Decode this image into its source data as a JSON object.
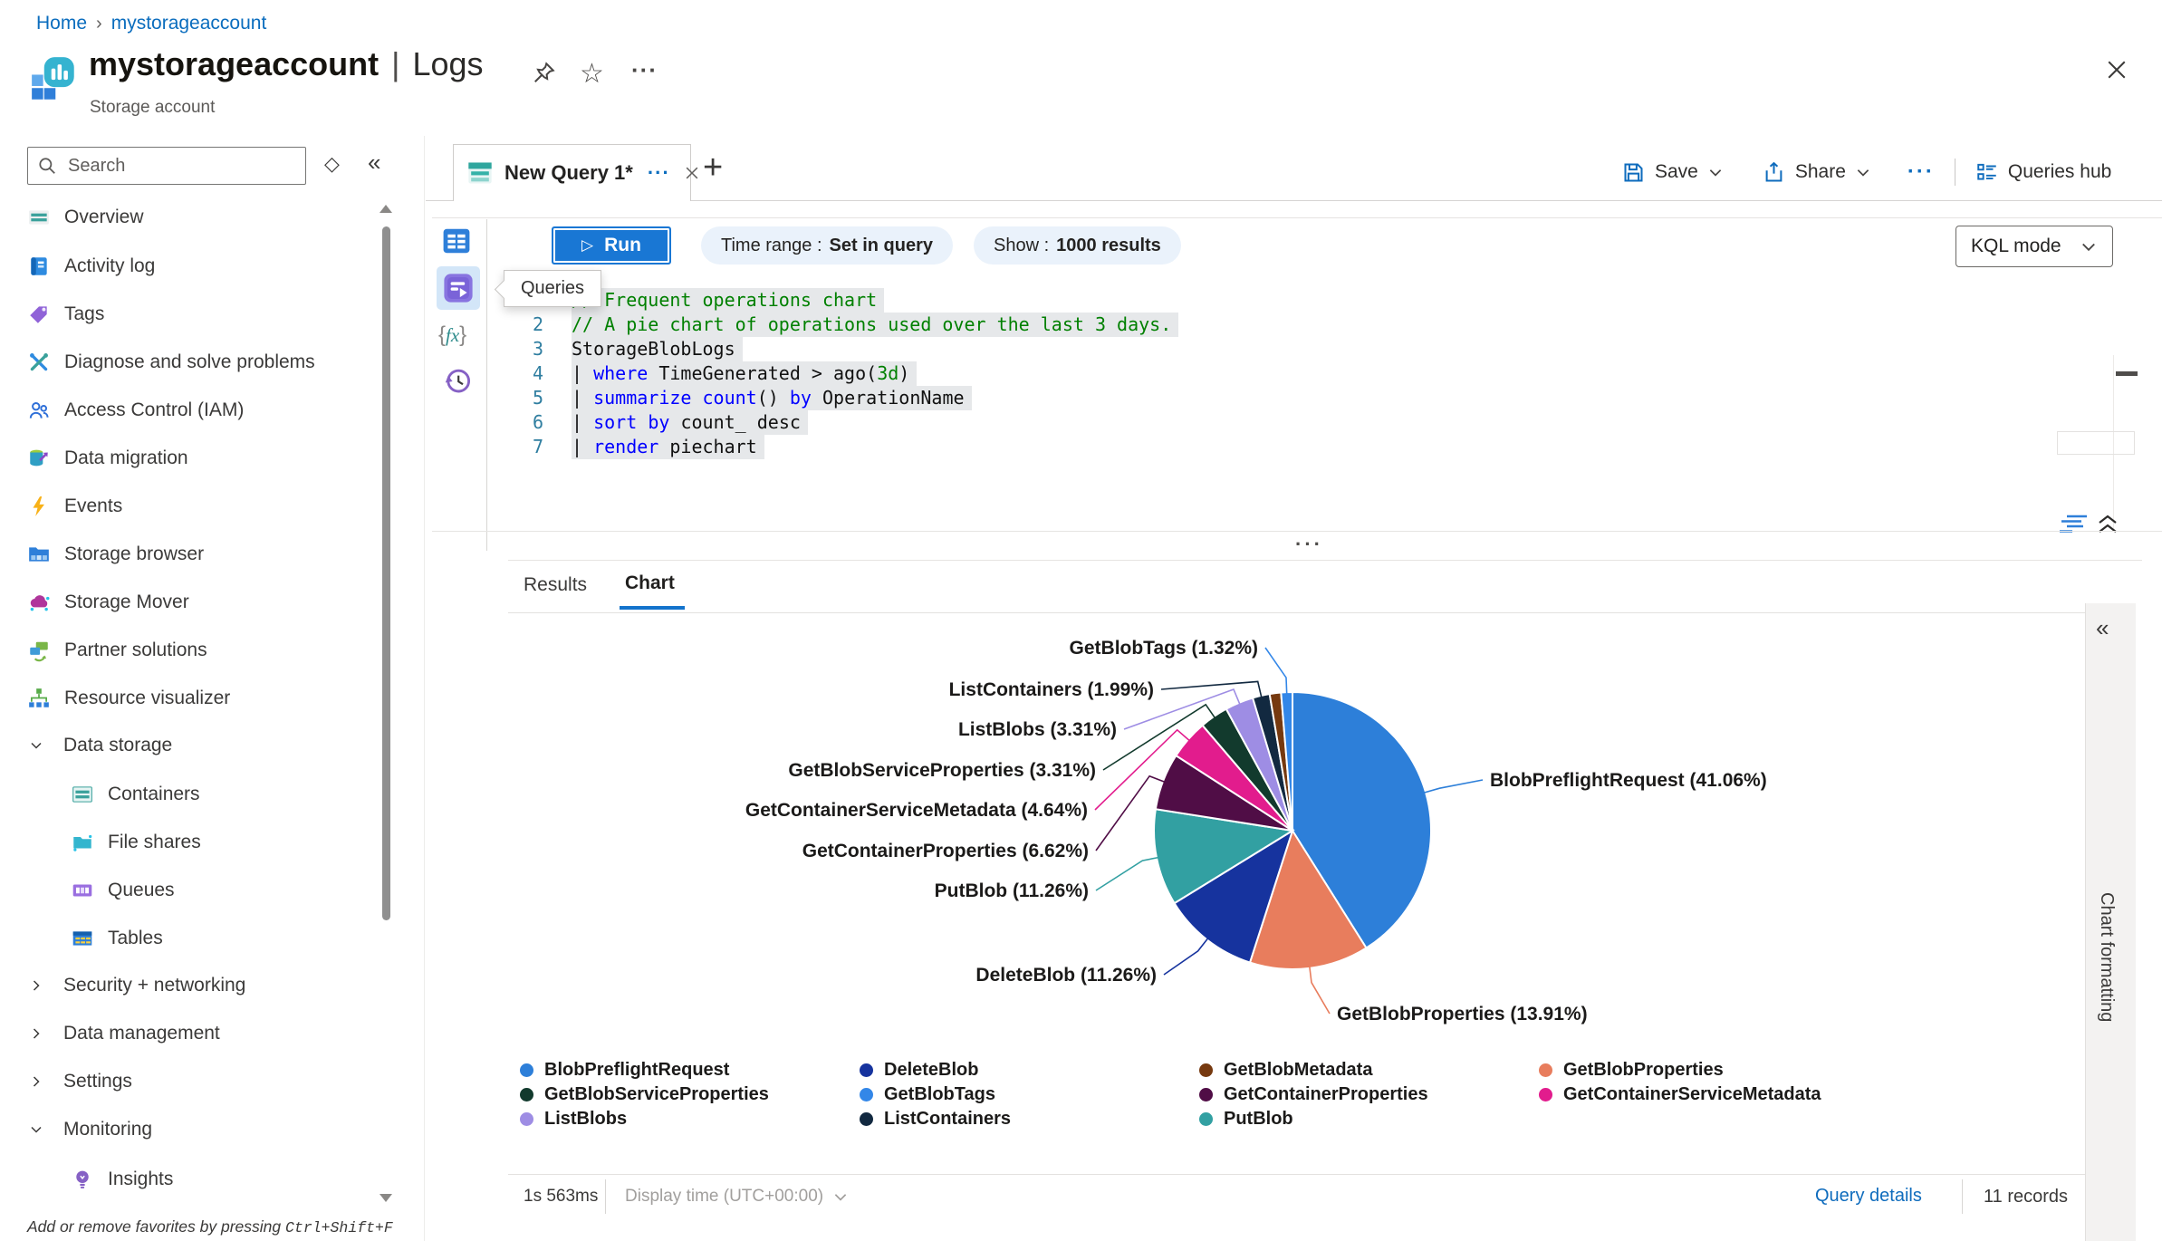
{
  "breadcrumb": {
    "home": "Home",
    "current": "mystorageaccount"
  },
  "header": {
    "resource_name": "mystorageaccount",
    "separator": "|",
    "page_name": "Logs",
    "resource_type": "Storage account"
  },
  "icons": {
    "breadcrumb_separator": "›",
    "star": "☆",
    "more": "···",
    "tab_menu": "···",
    "new_tab": "+",
    "diamond": "◇",
    "collapse_left": "«",
    "play": "▷"
  },
  "sidebar": {
    "search_placeholder": "Search",
    "items": [
      {
        "label": "Overview",
        "icon": "overview-icon"
      },
      {
        "label": "Activity log",
        "icon": "activity-log-icon"
      },
      {
        "label": "Tags",
        "icon": "tags-icon"
      },
      {
        "label": "Diagnose and solve problems",
        "icon": "diagnose-icon"
      },
      {
        "label": "Access Control (IAM)",
        "icon": "access-control-icon"
      },
      {
        "label": "Data migration",
        "icon": "data-migration-icon"
      },
      {
        "label": "Events",
        "icon": "events-icon"
      },
      {
        "label": "Storage browser",
        "icon": "storage-browser-icon"
      },
      {
        "label": "Storage Mover",
        "icon": "storage-mover-icon"
      },
      {
        "label": "Partner solutions",
        "icon": "partner-solutions-icon"
      },
      {
        "label": "Resource visualizer",
        "icon": "resource-visualizer-icon"
      },
      {
        "label": "Data storage",
        "group": true,
        "expanded": true
      },
      {
        "label": "Containers",
        "icon": "containers-icon",
        "indent": true
      },
      {
        "label": "File shares",
        "icon": "file-shares-icon",
        "indent": true
      },
      {
        "label": "Queues",
        "icon": "queues-icon",
        "indent": true
      },
      {
        "label": "Tables",
        "icon": "tables-icon",
        "indent": true
      },
      {
        "label": "Security + networking",
        "group": true,
        "expanded": false
      },
      {
        "label": "Data management",
        "group": true,
        "expanded": false
      },
      {
        "label": "Settings",
        "group": true,
        "expanded": false
      },
      {
        "label": "Monitoring",
        "group": true,
        "expanded": true
      },
      {
        "label": "Insights",
        "icon": "insights-icon",
        "indent": true
      }
    ],
    "footer_hint": "Add or remove favorites by pressing",
    "footer_shortcut": "Ctrl+Shift+F"
  },
  "tabbar": {
    "tab_title": "New Query 1*",
    "actions": {
      "save": "Save",
      "share": "Share",
      "queries_hub": "Queries hub"
    }
  },
  "query_toolbar": {
    "run_label": "Run",
    "time_range_label": "Time range :",
    "time_range_value": "Set in query",
    "show_label": "Show :",
    "show_value": "1000 results",
    "mode_value": "KQL mode"
  },
  "editor": {
    "tooltip": "Queries",
    "lines": [
      {
        "num": "1",
        "tokens": [
          [
            "comment",
            "// Frequent operations chart"
          ]
        ]
      },
      {
        "num": "2",
        "tokens": [
          [
            "comment",
            "// A pie chart of operations used over the last 3 days."
          ]
        ]
      },
      {
        "num": "3",
        "tokens": [
          [
            "plain",
            "StorageBlobLogs"
          ]
        ]
      },
      {
        "num": "4",
        "tokens": [
          [
            "plain",
            "| "
          ],
          [
            "keyword",
            "where"
          ],
          [
            "plain",
            " TimeGenerated > ago("
          ],
          [
            "literal",
            "3d"
          ],
          [
            "plain",
            ")"
          ]
        ]
      },
      {
        "num": "5",
        "tokens": [
          [
            "plain",
            "| "
          ],
          [
            "keyword",
            "summarize"
          ],
          [
            "plain",
            " "
          ],
          [
            "keyword",
            "count"
          ],
          [
            "plain",
            "() "
          ],
          [
            "keyword",
            "by"
          ],
          [
            "plain",
            " OperationName"
          ]
        ]
      },
      {
        "num": "6",
        "tokens": [
          [
            "plain",
            "| "
          ],
          [
            "keyword",
            "sort"
          ],
          [
            "plain",
            " "
          ],
          [
            "keyword",
            "by"
          ],
          [
            "plain",
            " count_ desc"
          ]
        ]
      },
      {
        "num": "7",
        "tokens": [
          [
            "plain",
            "| "
          ],
          [
            "keyword",
            "render"
          ],
          [
            "plain",
            " piechart"
          ]
        ]
      }
    ]
  },
  "results_panel": {
    "tabs": [
      "Results",
      "Chart"
    ],
    "active_tab": "Chart",
    "more_handle": "···"
  },
  "chart_data": {
    "type": "pie",
    "start": "top",
    "direction": "clockwise",
    "label_format": "{name} ({pct}%)",
    "legend_position": "bottom",
    "series": [
      {
        "name": "BlobPreflightRequest",
        "pct": 41.06,
        "color": "#2d7fd9"
      },
      {
        "name": "GetBlobProperties",
        "pct": 13.91,
        "color": "#e87d5d"
      },
      {
        "name": "DeleteBlob",
        "pct": 11.26,
        "color": "#16339e"
      },
      {
        "name": "PutBlob",
        "pct": 11.26,
        "color": "#32a0a2"
      },
      {
        "name": "GetContainerProperties",
        "pct": 6.62,
        "color": "#500d46"
      },
      {
        "name": "GetContainerServiceMetadata",
        "pct": 4.64,
        "color": "#e21c8d"
      },
      {
        "name": "GetBlobServiceProperties",
        "pct": 3.31,
        "color": "#123a2d"
      },
      {
        "name": "ListBlobs",
        "pct": 3.31,
        "color": "#9e8de4"
      },
      {
        "name": "ListContainers",
        "pct": 1.99,
        "color": "#122940"
      },
      {
        "name": "GetBlobMetadata",
        "pct": 1.32,
        "color": "#76390f",
        "label_hidden": true
      },
      {
        "name": "GetBlobTags",
        "pct": 1.32,
        "color": "#3387e8"
      }
    ],
    "legend_order": [
      "BlobPreflightRequest",
      "DeleteBlob",
      "GetBlobMetadata",
      "GetBlobProperties",
      "GetBlobServiceProperties",
      "GetBlobTags",
      "GetContainerProperties",
      "GetContainerServiceMetadata",
      "ListBlobs",
      "ListContainers",
      "PutBlob"
    ]
  },
  "statusbar": {
    "elapsed": "1s 563ms",
    "display_time": "Display time (UTC+00:00)",
    "query_details": "Query details",
    "record_count": "11 records"
  },
  "right_panel": {
    "title": "Chart formatting"
  }
}
